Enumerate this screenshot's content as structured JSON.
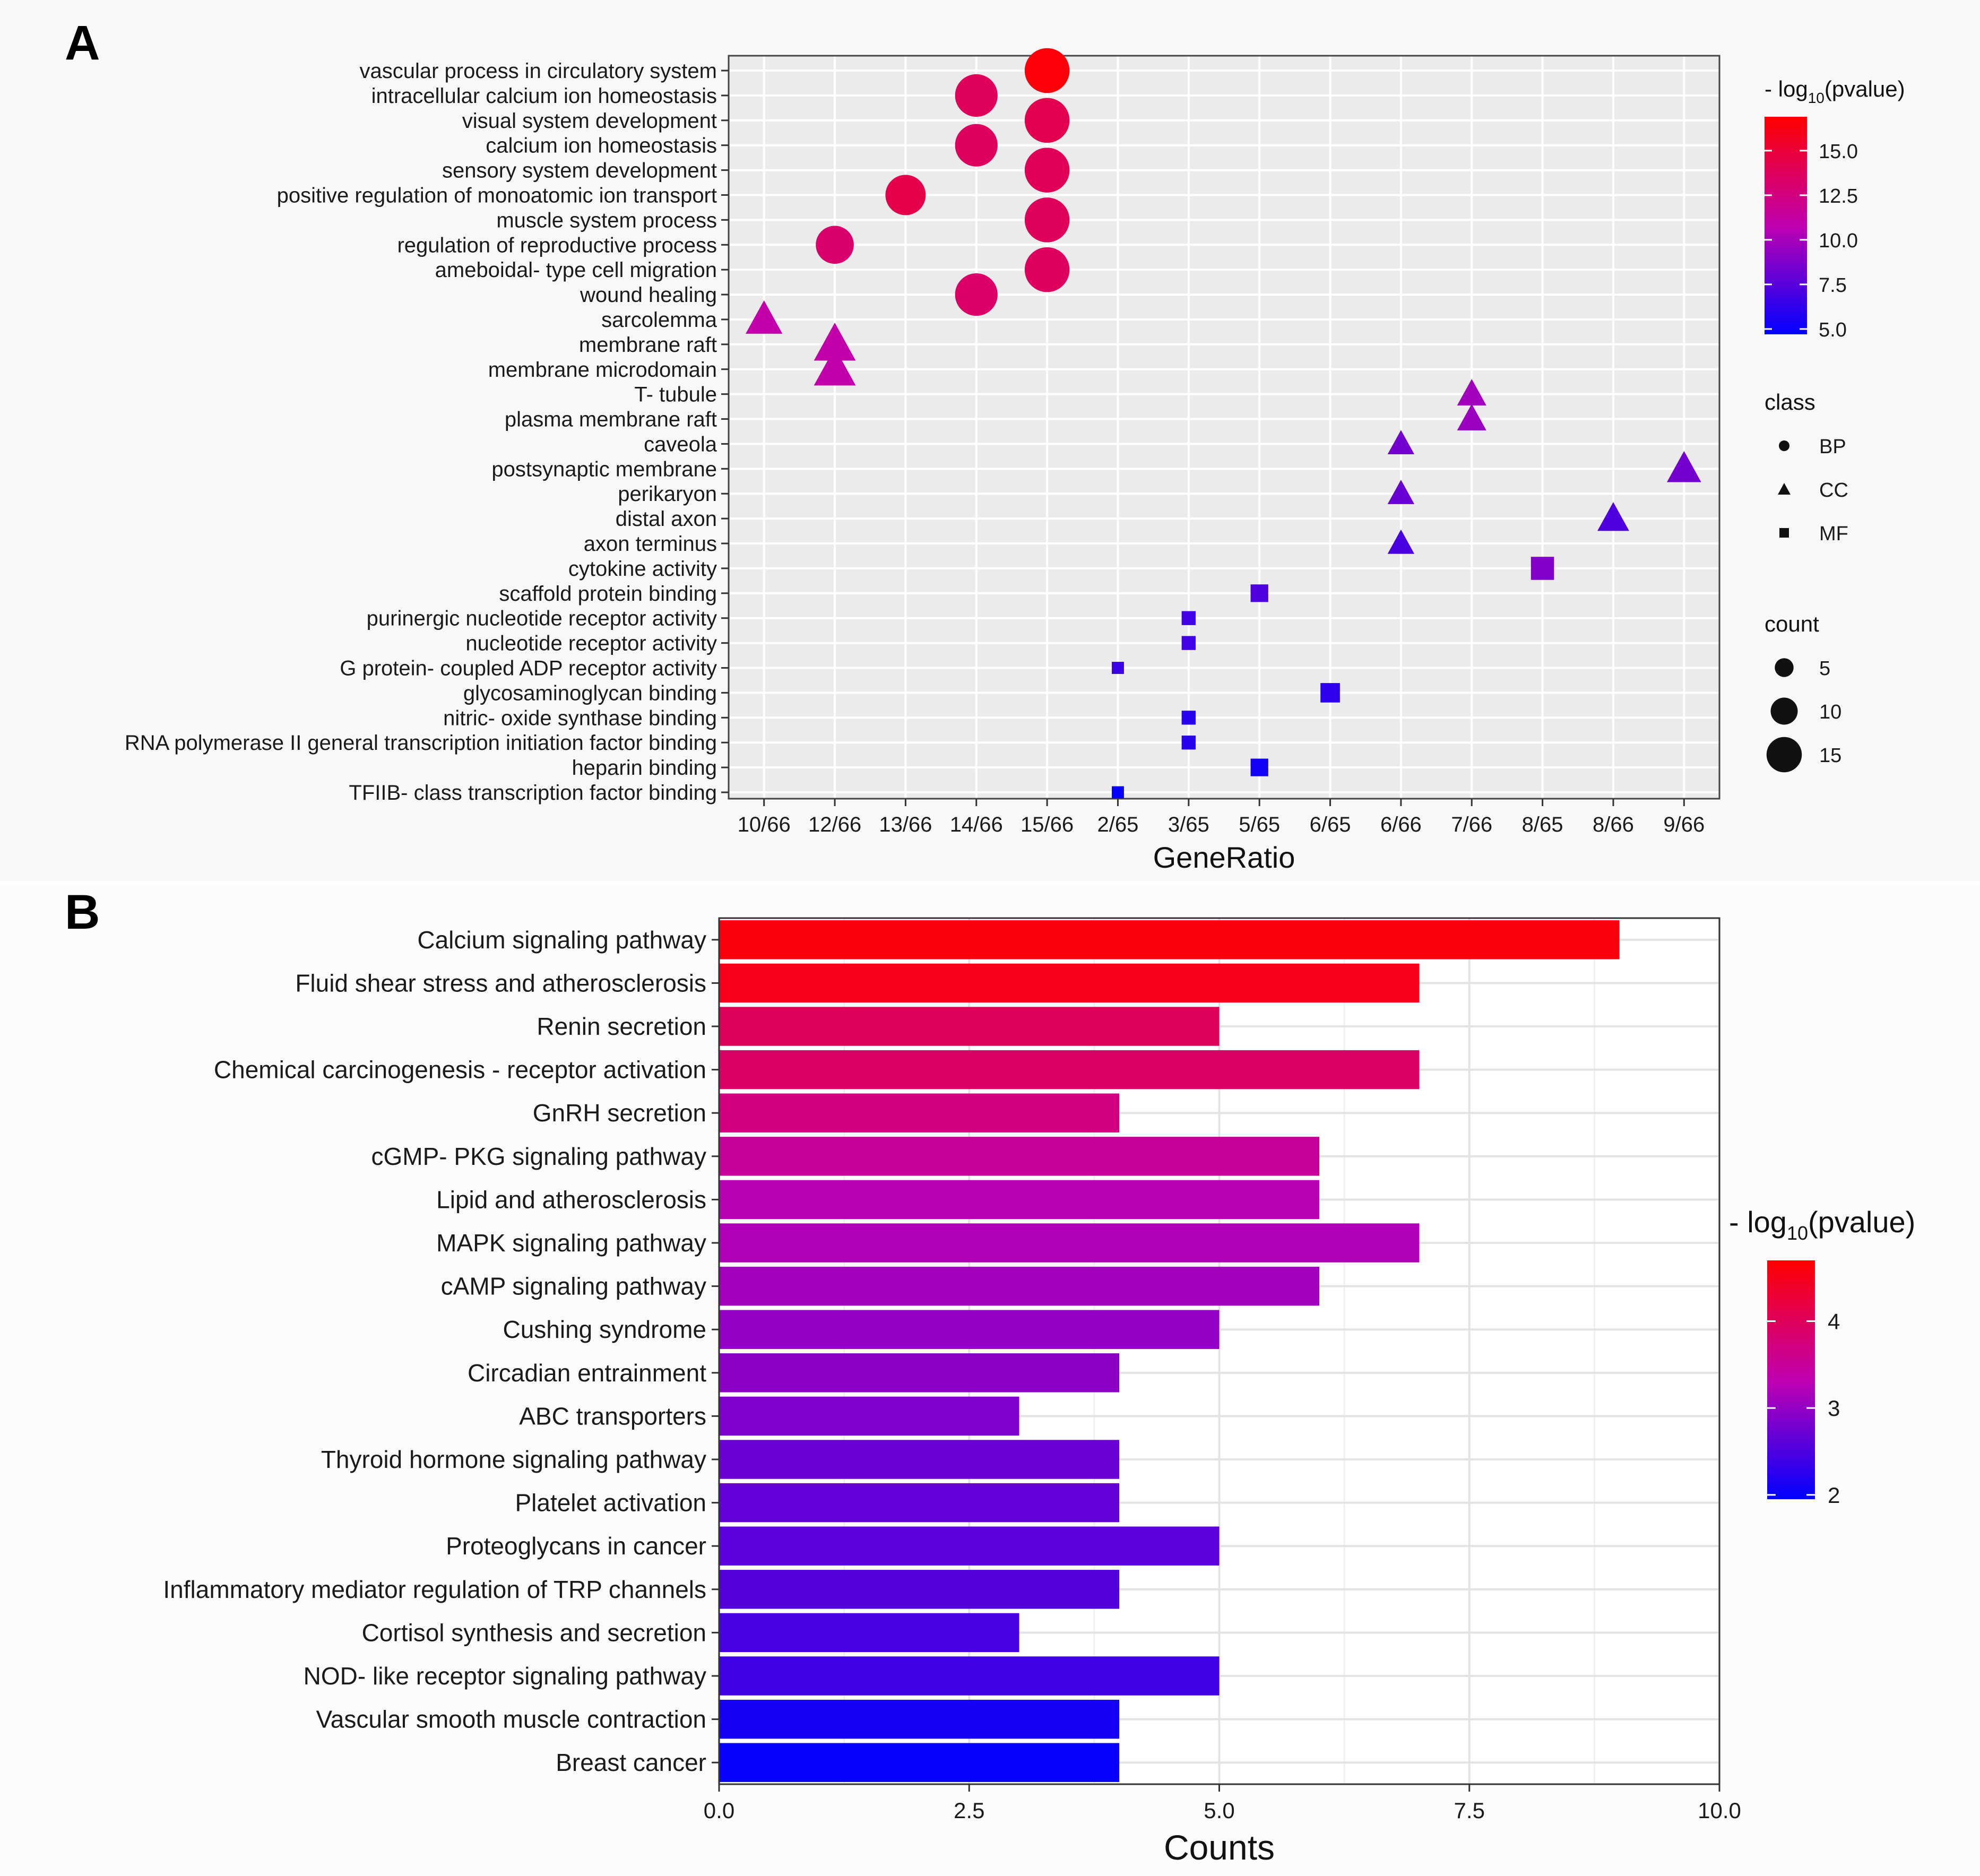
{
  "chart_data": [
    {
      "panel": "A",
      "type": "scatter",
      "xlabel": "GeneRatio",
      "x_categories": [
        "10/66",
        "12/66",
        "13/66",
        "14/66",
        "15/66",
        "2/65",
        "3/65",
        "5/65",
        "6/65",
        "6/66",
        "7/66",
        "8/65",
        "8/66",
        "9/66"
      ],
      "terms": [
        {
          "term": "vascular process in circulatory system",
          "ratio": "15/66",
          "class": "BP",
          "count": 15,
          "neglog10p": 16.6
        },
        {
          "term": "intracellular calcium ion homeostasis",
          "ratio": "14/66",
          "class": "BP",
          "count": 14,
          "neglog10p": 13.8
        },
        {
          "term": "visual system development",
          "ratio": "15/66",
          "class": "BP",
          "count": 15,
          "neglog10p": 14.2
        },
        {
          "term": "calcium ion homeostasis",
          "ratio": "14/66",
          "class": "BP",
          "count": 14,
          "neglog10p": 13.6
        },
        {
          "term": "sensory system development",
          "ratio": "15/66",
          "class": "BP",
          "count": 15,
          "neglog10p": 13.9
        },
        {
          "term": "positive regulation of monoatomic ion transport",
          "ratio": "13/66",
          "class": "BP",
          "count": 13,
          "neglog10p": 14.3
        },
        {
          "term": "muscle system process",
          "ratio": "15/66",
          "class": "BP",
          "count": 15,
          "neglog10p": 13.8
        },
        {
          "term": "regulation of reproductive process",
          "ratio": "12/66",
          "class": "BP",
          "count": 12,
          "neglog10p": 13.2
        },
        {
          "term": "ameboidal- type cell migration",
          "ratio": "15/66",
          "class": "BP",
          "count": 15,
          "neglog10p": 13.6
        },
        {
          "term": "wound healing",
          "ratio": "14/66",
          "class": "BP",
          "count": 14,
          "neglog10p": 13.3
        },
        {
          "term": "sarcolemma",
          "ratio": "10/66",
          "class": "CC",
          "count": 10,
          "neglog10p": 11.0
        },
        {
          "term": "membrane raft",
          "ratio": "12/66",
          "class": "CC",
          "count": 12,
          "neglog10p": 11.0
        },
        {
          "term": "membrane microdomain",
          "ratio": "12/66",
          "class": "CC",
          "count": 12,
          "neglog10p": 11.0
        },
        {
          "term": "T- tubule",
          "ratio": "7/66",
          "class": "CC",
          "count": 7,
          "neglog10p": 9.8
        },
        {
          "term": "plasma membrane raft",
          "ratio": "7/66",
          "class": "CC",
          "count": 7,
          "neglog10p": 9.6
        },
        {
          "term": "caveola",
          "ratio": "6/66",
          "class": "CC",
          "count": 6,
          "neglog10p": 8.4
        },
        {
          "term": "postsynaptic membrane",
          "ratio": "9/66",
          "class": "CC",
          "count": 9,
          "neglog10p": 8.4
        },
        {
          "term": "perikaryon",
          "ratio": "6/66",
          "class": "CC",
          "count": 6,
          "neglog10p": 8.0
        },
        {
          "term": "distal axon",
          "ratio": "8/66",
          "class": "CC",
          "count": 8,
          "neglog10p": 7.2
        },
        {
          "term": "axon terminus",
          "ratio": "6/66",
          "class": "CC",
          "count": 6,
          "neglog10p": 7.0
        },
        {
          "term": "cytokine activity",
          "ratio": "8/65",
          "class": "MF",
          "count": 8,
          "neglog10p": 8.8
        },
        {
          "term": "scaffold protein binding",
          "ratio": "5/65",
          "class": "MF",
          "count": 5,
          "neglog10p": 7.2
        },
        {
          "term": "purinergic nucleotide receptor activity",
          "ratio": "3/65",
          "class": "MF",
          "count": 3,
          "neglog10p": 6.8
        },
        {
          "term": "nucleotide receptor activity",
          "ratio": "3/65",
          "class": "MF",
          "count": 3,
          "neglog10p": 6.8
        },
        {
          "term": "G protein- coupled ADP receptor activity",
          "ratio": "2/65",
          "class": "MF",
          "count": 2,
          "neglog10p": 6.6
        },
        {
          "term": "glycosaminoglycan binding",
          "ratio": "6/65",
          "class": "MF",
          "count": 6,
          "neglog10p": 6.2
        },
        {
          "term": "nitric- oxide synthase binding",
          "ratio": "3/65",
          "class": "MF",
          "count": 3,
          "neglog10p": 6.0
        },
        {
          "term": "RNA polymerase II general transcription initiation factor binding",
          "ratio": "3/65",
          "class": "MF",
          "count": 3,
          "neglog10p": 6.0
        },
        {
          "term": "heparin binding",
          "ratio": "5/65",
          "class": "MF",
          "count": 5,
          "neglog10p": 5.3
        },
        {
          "term": "TFIIB- class transcription factor binding",
          "ratio": "2/65",
          "class": "MF",
          "count": 2,
          "neglog10p": 5.0
        }
      ],
      "color_scale": {
        "title": "- log10(pvalue)",
        "min": 4.7,
        "max": 16.9,
        "ticks": [
          "15.0",
          "12.5",
          "10.0",
          "7.5",
          "5.0"
        ],
        "tick_values": [
          15,
          12.5,
          10,
          7.5,
          5
        ],
        "low_color": "#0000ff",
        "high_color": "#ff0000"
      },
      "shape_legend": {
        "title": "class",
        "items": [
          "BP",
          "CC",
          "MF"
        ]
      },
      "size_legend": {
        "title": "count",
        "items": [
          5,
          10,
          15
        ]
      }
    },
    {
      "panel": "B",
      "type": "bar",
      "orientation": "horizontal",
      "xlabel": "Counts",
      "xlim": [
        0,
        10
      ],
      "x_ticks": [
        "0.0",
        "2.5",
        "5.0",
        "7.5",
        "10.0"
      ],
      "x_tick_values": [
        0,
        2.5,
        5,
        7.5,
        10
      ],
      "bars": [
        {
          "label": "Calcium signaling pathway",
          "value": 9,
          "neglog10p": 4.6
        },
        {
          "label": "Fluid shear stress and atherosclerosis",
          "value": 7,
          "neglog10p": 4.5
        },
        {
          "label": "Renin secretion",
          "value": 5,
          "neglog10p": 4.0
        },
        {
          "label": "Chemical carcinogenesis -  receptor activation",
          "value": 7,
          "neglog10p": 3.9
        },
        {
          "label": "GnRH secretion",
          "value": 4,
          "neglog10p": 3.7
        },
        {
          "label": "cGMP- PKG signaling pathway",
          "value": 6,
          "neglog10p": 3.5
        },
        {
          "label": "Lipid and atherosclerosis",
          "value": 6,
          "neglog10p": 3.25
        },
        {
          "label": "MAPK signaling pathway",
          "value": 7,
          "neglog10p": 3.2
        },
        {
          "label": "cAMP signaling pathway",
          "value": 6,
          "neglog10p": 3.1
        },
        {
          "label": "Cushing syndrome",
          "value": 5,
          "neglog10p": 3.0
        },
        {
          "label": "Circadian entrainment",
          "value": 4,
          "neglog10p": 2.95
        },
        {
          "label": "ABC transporters",
          "value": 3,
          "neglog10p": 2.85
        },
        {
          "label": "Thyroid hormone signaling pathway",
          "value": 4,
          "neglog10p": 2.7
        },
        {
          "label": "Platelet activation",
          "value": 4,
          "neglog10p": 2.65
        },
        {
          "label": "Proteoglycans in cancer",
          "value": 5,
          "neglog10p": 2.6
        },
        {
          "label": "Inflammatory mediator regulation of TRP channels",
          "value": 4,
          "neglog10p": 2.55
        },
        {
          "label": "Cortisol synthesis and secretion",
          "value": 3,
          "neglog10p": 2.45
        },
        {
          "label": "NOD- like receptor signaling pathway",
          "value": 5,
          "neglog10p": 2.4
        },
        {
          "label": "Vascular smooth muscle contraction",
          "value": 4,
          "neglog10p": 2.1
        },
        {
          "label": "Breast cancer",
          "value": 4,
          "neglog10p": 2.0
        }
      ],
      "color_scale": {
        "title": "- log10(pvalue)",
        "min": 1.95,
        "max": 4.7,
        "ticks": [
          "4",
          "3",
          "2"
        ],
        "tick_values": [
          4,
          3,
          2
        ],
        "low_color": "#0000ff",
        "high_color": "#ff0000"
      }
    }
  ],
  "panel_labels": {
    "a": "A",
    "b": "B"
  },
  "legend_text": {
    "neg_log_prefix": "- log",
    "log_base": "10",
    "pvalue_suffix": "(pvalue)"
  }
}
